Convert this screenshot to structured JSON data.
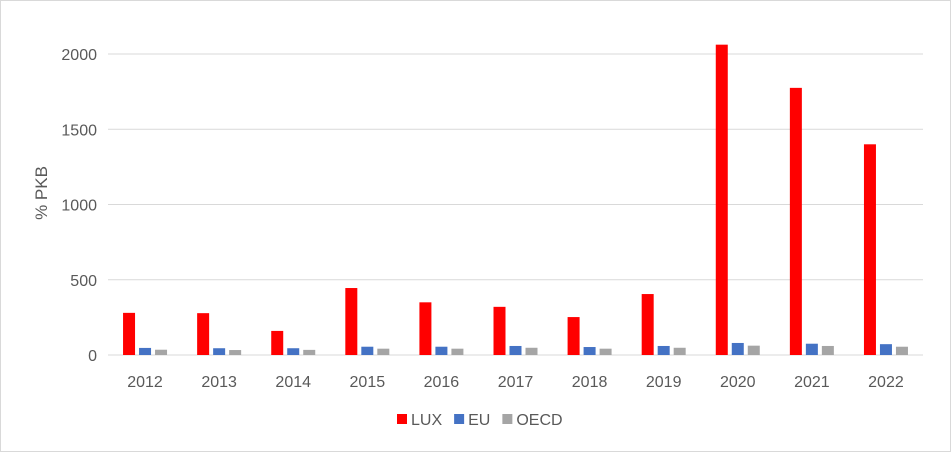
{
  "chart_data": {
    "type": "bar",
    "title": "",
    "xlabel": "",
    "ylabel": "% PKB",
    "ylim": [
      0,
      2250
    ],
    "yticks": [
      0,
      500,
      1000,
      1500,
      2000
    ],
    "grid": true,
    "legend_position": "bottom",
    "categories": [
      "2012",
      "2013",
      "2014",
      "2015",
      "2016",
      "2017",
      "2018",
      "2019",
      "2020",
      "2021",
      "2022"
    ],
    "series": [
      {
        "name": "LUX",
        "color": "#ff0000",
        "values": [
          280,
          278,
          160,
          445,
          350,
          320,
          252,
          405,
          2062,
          1775,
          1400
        ]
      },
      {
        "name": "EU",
        "color": "#4472c4",
        "values": [
          47,
          45,
          45,
          55,
          55,
          60,
          53,
          60,
          80,
          75,
          72
        ]
      },
      {
        "name": "OECD",
        "color": "#a5a5a5",
        "values": [
          35,
          33,
          34,
          42,
          42,
          48,
          42,
          48,
          62,
          60,
          55
        ]
      }
    ]
  }
}
